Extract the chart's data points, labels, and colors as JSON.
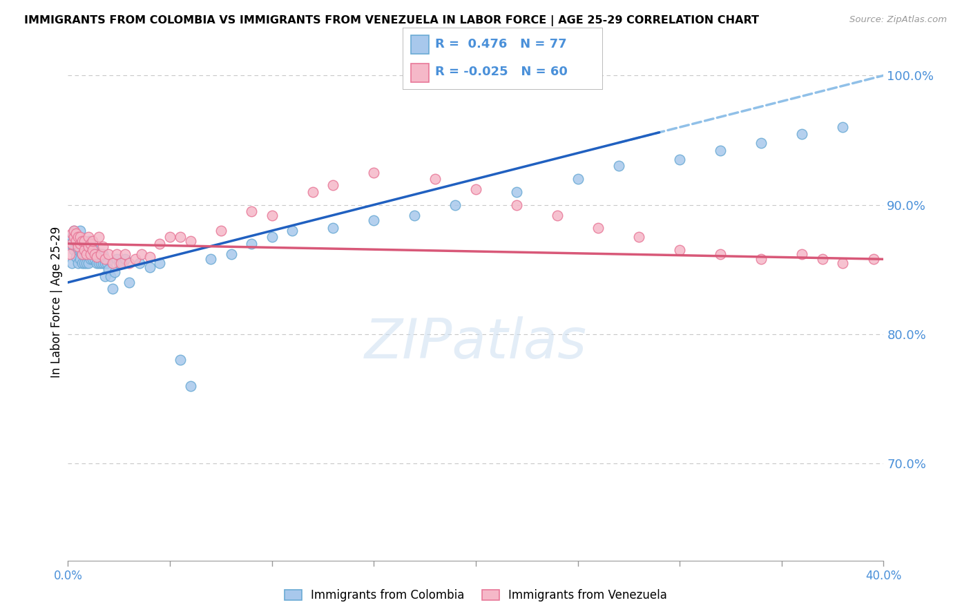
{
  "title": "IMMIGRANTS FROM COLOMBIA VS IMMIGRANTS FROM VENEZUELA IN LABOR FORCE | AGE 25-29 CORRELATION CHART",
  "source": "Source: ZipAtlas.com",
  "ylabel": "In Labor Force | Age 25-29",
  "xlim": [
    0.0,
    0.4
  ],
  "ylim": [
    0.625,
    1.025
  ],
  "xticks": [
    0.0,
    0.05,
    0.1,
    0.15,
    0.2,
    0.25,
    0.3,
    0.35,
    0.4
  ],
  "yticks": [
    0.7,
    0.8,
    0.9,
    1.0
  ],
  "ytick_labels": [
    "70.0%",
    "80.0%",
    "90.0%",
    "100.0%"
  ],
  "colombia_R": 0.476,
  "colombia_N": 77,
  "venezuela_R": -0.025,
  "venezuela_N": 60,
  "colombia_color": "#A8C8EC",
  "colombia_edge": "#6AAAD4",
  "venezuela_color": "#F5B8C8",
  "venezuela_edge": "#E87898",
  "trend_colombia_color": "#2060C0",
  "trend_venezuela_color": "#D85878",
  "trend_dashed_color": "#90C0E8",
  "colombia_x": [
    0.001,
    0.002,
    0.002,
    0.003,
    0.003,
    0.003,
    0.004,
    0.004,
    0.004,
    0.005,
    0.005,
    0.005,
    0.006,
    0.006,
    0.006,
    0.006,
    0.007,
    0.007,
    0.007,
    0.008,
    0.008,
    0.008,
    0.009,
    0.009,
    0.009,
    0.01,
    0.01,
    0.01,
    0.011,
    0.011,
    0.011,
    0.012,
    0.012,
    0.013,
    0.013,
    0.014,
    0.014,
    0.015,
    0.015,
    0.016,
    0.016,
    0.017,
    0.017,
    0.018,
    0.018,
    0.019,
    0.02,
    0.021,
    0.022,
    0.023,
    0.024,
    0.025,
    0.027,
    0.028,
    0.03,
    0.035,
    0.04,
    0.045,
    0.055,
    0.06,
    0.07,
    0.08,
    0.09,
    0.1,
    0.11,
    0.13,
    0.15,
    0.17,
    0.19,
    0.22,
    0.25,
    0.27,
    0.3,
    0.32,
    0.34,
    0.36,
    0.38
  ],
  "colombia_y": [
    0.87,
    0.855,
    0.875,
    0.865,
    0.872,
    0.88,
    0.86,
    0.87,
    0.878,
    0.855,
    0.865,
    0.875,
    0.858,
    0.865,
    0.872,
    0.88,
    0.855,
    0.862,
    0.87,
    0.855,
    0.862,
    0.87,
    0.855,
    0.862,
    0.87,
    0.855,
    0.862,
    0.872,
    0.858,
    0.865,
    0.872,
    0.858,
    0.865,
    0.858,
    0.865,
    0.855,
    0.862,
    0.855,
    0.862,
    0.855,
    0.862,
    0.855,
    0.862,
    0.855,
    0.845,
    0.855,
    0.85,
    0.845,
    0.835,
    0.848,
    0.858,
    0.855,
    0.855,
    0.858,
    0.84,
    0.855,
    0.852,
    0.855,
    0.78,
    0.76,
    0.858,
    0.862,
    0.87,
    0.875,
    0.88,
    0.882,
    0.888,
    0.892,
    0.9,
    0.91,
    0.92,
    0.93,
    0.935,
    0.942,
    0.948,
    0.955,
    0.96
  ],
  "venezuela_x": [
    0.001,
    0.002,
    0.002,
    0.003,
    0.003,
    0.004,
    0.004,
    0.005,
    0.005,
    0.006,
    0.006,
    0.007,
    0.007,
    0.008,
    0.008,
    0.009,
    0.01,
    0.01,
    0.011,
    0.011,
    0.012,
    0.012,
    0.013,
    0.014,
    0.015,
    0.016,
    0.017,
    0.018,
    0.02,
    0.022,
    0.024,
    0.026,
    0.028,
    0.03,
    0.033,
    0.036,
    0.04,
    0.045,
    0.05,
    0.055,
    0.06,
    0.075,
    0.09,
    0.1,
    0.12,
    0.13,
    0.15,
    0.18,
    0.2,
    0.22,
    0.24,
    0.26,
    0.28,
    0.3,
    0.32,
    0.34,
    0.36,
    0.37,
    0.38,
    0.395
  ],
  "venezuela_y": [
    0.862,
    0.87,
    0.878,
    0.875,
    0.88,
    0.872,
    0.878,
    0.868,
    0.875,
    0.87,
    0.875,
    0.862,
    0.872,
    0.865,
    0.872,
    0.862,
    0.868,
    0.875,
    0.862,
    0.87,
    0.865,
    0.872,
    0.862,
    0.86,
    0.875,
    0.862,
    0.868,
    0.858,
    0.862,
    0.855,
    0.862,
    0.855,
    0.862,
    0.855,
    0.858,
    0.862,
    0.86,
    0.87,
    0.875,
    0.875,
    0.872,
    0.88,
    0.895,
    0.892,
    0.91,
    0.915,
    0.925,
    0.92,
    0.912,
    0.9,
    0.892,
    0.882,
    0.875,
    0.865,
    0.862,
    0.858,
    0.862,
    0.858,
    0.855,
    0.858
  ],
  "watermark_text": "ZIPatlas",
  "background_color": "#FFFFFF",
  "grid_color": "#C8C8C8",
  "axis_color": "#4A90D9",
  "tick_color": "#999999"
}
